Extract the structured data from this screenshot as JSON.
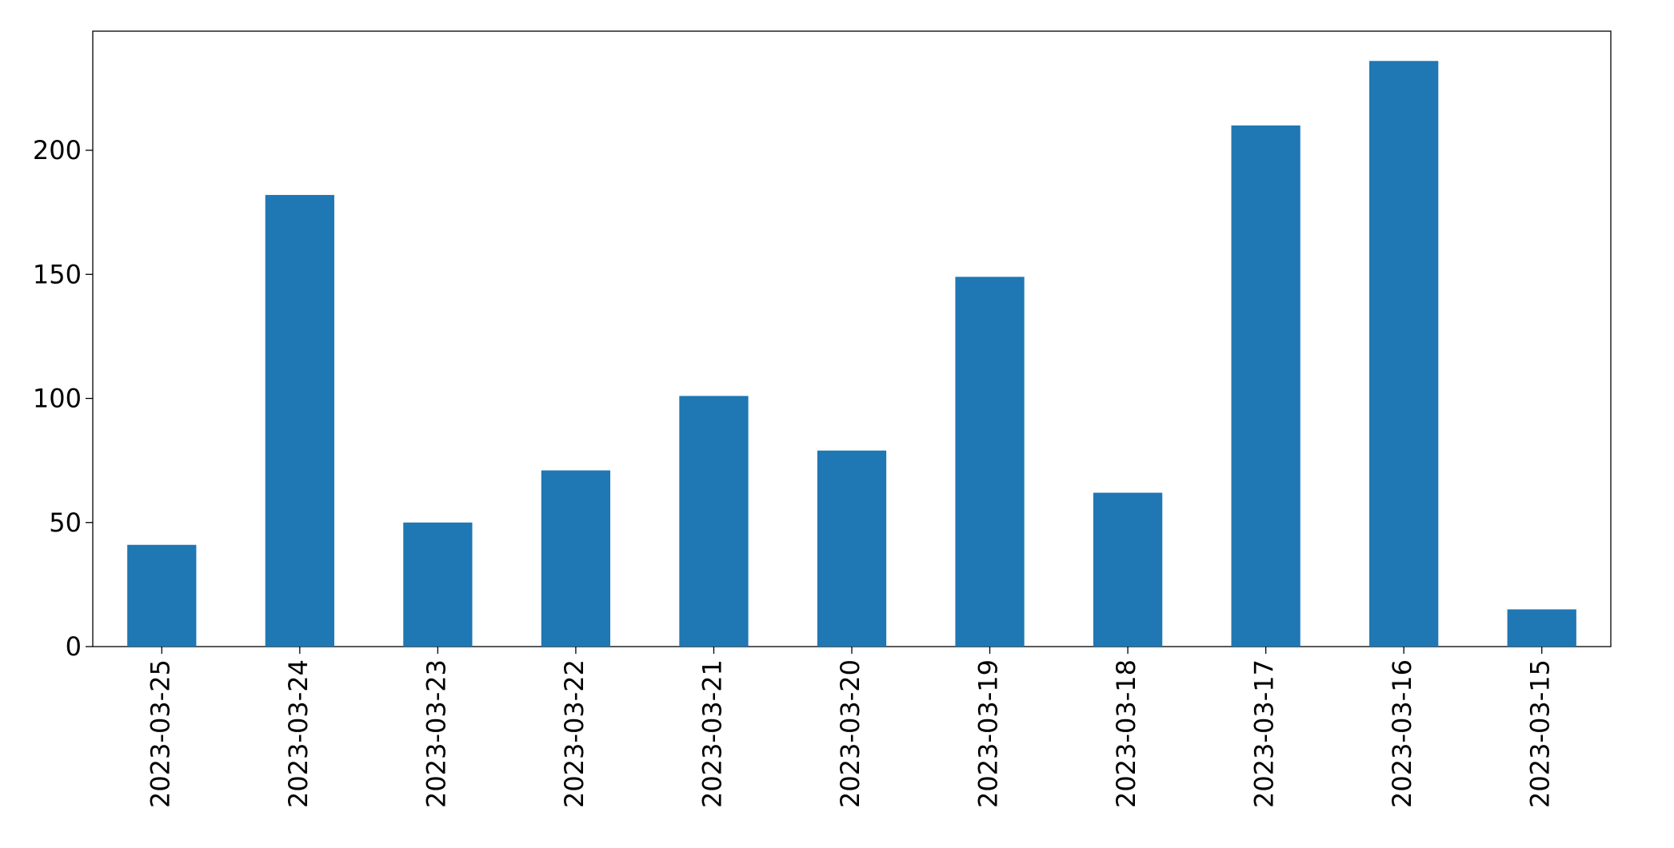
{
  "chart_data": {
    "type": "bar",
    "categories": [
      "2023-03-25",
      "2023-03-24",
      "2023-03-23",
      "2023-03-22",
      "2023-03-21",
      "2023-03-20",
      "2023-03-19",
      "2023-03-18",
      "2023-03-17",
      "2023-03-16",
      "2023-03-15"
    ],
    "values": [
      41,
      182,
      50,
      71,
      101,
      79,
      149,
      62,
      210,
      236,
      15
    ],
    "color": "#1f77b4",
    "ylim": [
      0,
      248
    ],
    "yticks": [
      0,
      50,
      100,
      150,
      200
    ],
    "grid": false
  }
}
